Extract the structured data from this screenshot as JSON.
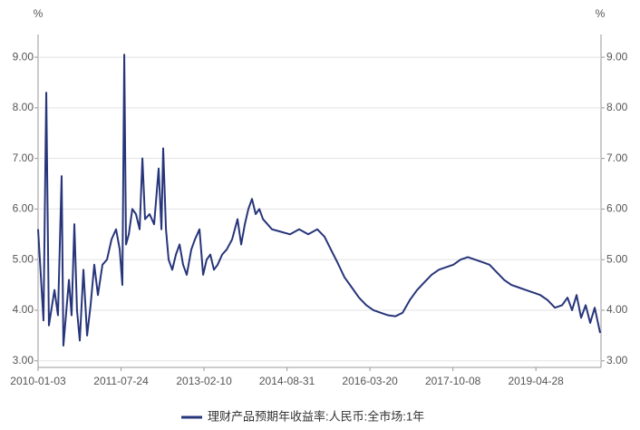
{
  "chart_data": {
    "type": "line",
    "y_label": "%",
    "y2_label": "%",
    "x": [
      "2010-01-03",
      "2010-02-09",
      "2010-02-28",
      "2010-03-18",
      "2010-04-25",
      "2010-05-19",
      "2010-06-13",
      "2010-06-25",
      "2010-08-02",
      "2010-08-20",
      "2010-09-08",
      "2010-09-26",
      "2010-10-15",
      "2010-11-09",
      "2010-12-04",
      "2010-12-28",
      "2011-01-22",
      "2011-02-16",
      "2011-03-19",
      "2011-04-19",
      "2011-05-20",
      "2011-06-20",
      "2011-07-15",
      "2011-08-02",
      "2011-08-15",
      "2011-08-27",
      "2011-09-15",
      "2011-10-09",
      "2011-11-03",
      "2011-11-28",
      "2011-12-17",
      "2012-01-04",
      "2012-02-04",
      "2012-03-06",
      "2012-04-06",
      "2012-04-25",
      "2012-05-07",
      "2012-05-26",
      "2012-06-13",
      "2012-07-08",
      "2012-08-02",
      "2012-08-27",
      "2012-09-20",
      "2012-10-15",
      "2012-11-15",
      "2012-12-10",
      "2013-01-10",
      "2013-02-04",
      "2013-02-28",
      "2013-03-25",
      "2013-04-19",
      "2013-05-14",
      "2013-06-14",
      "2013-07-15",
      "2013-08-21",
      "2013-09-27",
      "2013-10-22",
      "2013-11-16",
      "2013-12-10",
      "2014-01-04",
      "2014-01-29",
      "2014-02-23",
      "2014-03-20",
      "2014-04-20",
      "2014-05-20",
      "2014-07-21",
      "2014-09-21",
      "2014-11-22",
      "2015-01-23",
      "2015-03-26",
      "2015-05-15",
      "2015-06-27",
      "2015-08-10",
      "2015-09-28",
      "2015-11-17",
      "2016-01-05",
      "2016-02-24",
      "2016-04-13",
      "2016-06-02",
      "2016-07-22",
      "2016-09-09",
      "2016-10-29",
      "2016-12-17",
      "2017-02-05",
      "2017-03-26",
      "2017-05-15",
      "2017-07-04",
      "2017-08-22",
      "2017-10-11",
      "2017-11-29",
      "2018-01-18",
      "2018-03-08",
      "2018-04-27",
      "2018-06-15",
      "2018-08-04",
      "2018-09-23",
      "2018-11-11",
      "2018-12-31",
      "2019-02-18",
      "2019-04-09",
      "2019-05-28",
      "2019-07-17",
      "2019-09-05",
      "2019-10-24",
      "2019-11-30",
      "2019-12-31",
      "2020-01-31",
      "2020-03-02",
      "2020-04-02",
      "2020-05-03",
      "2020-06-03",
      "2020-07-10"
    ],
    "series": [
      {
        "name": "理财产品预期年收益率:人民币:全市场:1年",
        "color": "#27357a",
        "values": [
          5.6,
          3.8,
          8.3,
          3.7,
          4.4,
          3.9,
          6.65,
          3.3,
          4.6,
          3.9,
          5.7,
          4.0,
          3.4,
          4.8,
          3.5,
          4.1,
          4.9,
          4.3,
          4.9,
          5.0,
          5.4,
          5.6,
          5.2,
          4.5,
          9.05,
          5.3,
          5.5,
          6.0,
          5.9,
          5.6,
          7.0,
          5.8,
          5.9,
          5.7,
          6.8,
          5.6,
          7.2,
          5.6,
          5.0,
          4.8,
          5.1,
          5.3,
          4.9,
          4.7,
          5.2,
          5.4,
          5.6,
          4.7,
          5.0,
          5.1,
          4.8,
          4.9,
          5.1,
          5.2,
          5.4,
          5.8,
          5.3,
          5.7,
          6.0,
          6.2,
          5.9,
          6.0,
          5.8,
          5.7,
          5.6,
          5.55,
          5.5,
          5.6,
          5.5,
          5.6,
          5.45,
          5.2,
          4.95,
          4.65,
          4.45,
          4.25,
          4.1,
          4.0,
          3.95,
          3.9,
          3.88,
          3.95,
          4.2,
          4.4,
          4.55,
          4.7,
          4.8,
          4.85,
          4.9,
          5.0,
          5.05,
          5.0,
          4.95,
          4.9,
          4.75,
          4.6,
          4.5,
          4.45,
          4.4,
          4.35,
          4.3,
          4.2,
          4.05,
          4.1,
          4.25,
          4.0,
          4.3,
          3.85,
          4.1,
          3.75,
          4.05,
          3.55
        ]
      }
    ],
    "xlim": [
      "2010-01-03",
      "2020-07-16"
    ],
    "xticks": [
      "2010-01-03",
      "2011-07-24",
      "2013-02-10",
      "2014-08-31",
      "2016-03-20",
      "2017-10-08",
      "2019-04-28"
    ],
    "ylim": [
      2.87,
      9.45
    ],
    "yticks": [
      {
        "value": 3,
        "label": "3.00"
      },
      {
        "value": 4,
        "label": "4.00"
      },
      {
        "value": 5,
        "label": "5.00"
      },
      {
        "value": 6,
        "label": "6.00"
      },
      {
        "value": 7,
        "label": "7.00"
      },
      {
        "value": 8,
        "label": "8.00"
      },
      {
        "value": 9,
        "label": "9.00"
      }
    ],
    "y2lim": [
      2.87,
      9.45
    ],
    "y2ticks": [
      {
        "value": 3,
        "label": "3.00"
      },
      {
        "value": 4,
        "label": "4.00"
      },
      {
        "value": 5,
        "label": "5.00"
      },
      {
        "value": 6,
        "label": "6.00"
      },
      {
        "value": 7,
        "label": "7.00"
      },
      {
        "value": 8,
        "label": "8.00"
      },
      {
        "value": 9,
        "label": "9.00"
      }
    ],
    "grid": true
  }
}
